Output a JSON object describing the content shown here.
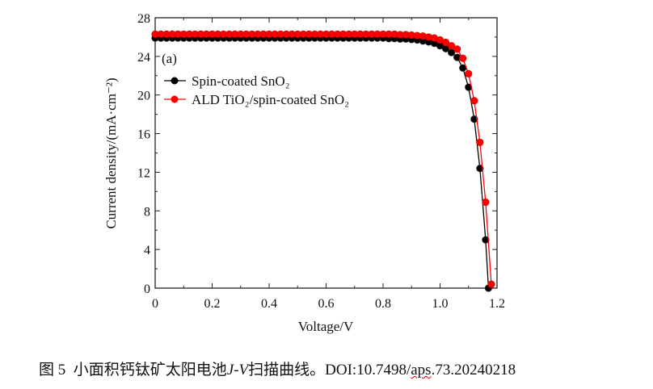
{
  "chart_data": {
    "type": "line",
    "panel_label": "(a)",
    "xlabel": "Voltage/V",
    "ylabel": "Current density/(mA·cm⁻²)",
    "xlim": [
      0,
      1.2
    ],
    "ylim": [
      0,
      28
    ],
    "x_ticks": [
      "0",
      "0.2",
      "0.4",
      "0.6",
      "0.8",
      "1.0",
      "1.2"
    ],
    "y_ticks": [
      "0",
      "4",
      "8",
      "12",
      "16",
      "20",
      "24",
      "28"
    ],
    "grid": false,
    "legend_position": "upper-left",
    "series": [
      {
        "name": "Spin-coated SnO₂",
        "color": "#000000",
        "x": [
          0,
          0.02,
          0.04,
          0.06,
          0.08,
          0.1,
          0.12,
          0.14,
          0.16,
          0.18,
          0.2,
          0.22,
          0.24,
          0.26,
          0.28,
          0.3,
          0.32,
          0.34,
          0.36,
          0.38,
          0.4,
          0.42,
          0.44,
          0.46,
          0.48,
          0.5,
          0.52,
          0.54,
          0.56,
          0.58,
          0.6,
          0.62,
          0.64,
          0.66,
          0.68,
          0.7,
          0.72,
          0.74,
          0.76,
          0.78,
          0.8,
          0.82,
          0.84,
          0.86,
          0.88,
          0.9,
          0.92,
          0.94,
          0.96,
          0.98,
          1.0,
          1.02,
          1.04,
          1.06,
          1.08,
          1.1,
          1.12,
          1.14,
          1.16,
          1.17
        ],
        "y": [
          25.9,
          25.9,
          25.9,
          25.9,
          25.9,
          25.9,
          25.9,
          25.9,
          25.9,
          25.9,
          25.9,
          25.9,
          25.9,
          25.9,
          25.9,
          25.9,
          25.9,
          25.9,
          25.9,
          25.9,
          25.9,
          25.9,
          25.9,
          25.9,
          25.9,
          25.9,
          25.9,
          25.9,
          25.9,
          25.9,
          25.9,
          25.9,
          25.9,
          25.9,
          25.9,
          25.9,
          25.9,
          25.9,
          25.9,
          25.9,
          25.9,
          25.85,
          25.85,
          25.8,
          25.8,
          25.75,
          25.7,
          25.6,
          25.5,
          25.35,
          25.1,
          24.8,
          24.4,
          23.9,
          22.8,
          20.8,
          17.5,
          12.4,
          5.0,
          0.0
        ]
      },
      {
        "name": "ALD TiO₂/spin-coated SnO₂",
        "color": "#ff0000",
        "x": [
          0,
          0.02,
          0.04,
          0.06,
          0.08,
          0.1,
          0.12,
          0.14,
          0.16,
          0.18,
          0.2,
          0.22,
          0.24,
          0.26,
          0.28,
          0.3,
          0.32,
          0.34,
          0.36,
          0.38,
          0.4,
          0.42,
          0.44,
          0.46,
          0.48,
          0.5,
          0.52,
          0.54,
          0.56,
          0.58,
          0.6,
          0.62,
          0.64,
          0.66,
          0.68,
          0.7,
          0.72,
          0.74,
          0.76,
          0.78,
          0.8,
          0.82,
          0.84,
          0.86,
          0.88,
          0.9,
          0.92,
          0.94,
          0.96,
          0.98,
          1.0,
          1.02,
          1.04,
          1.06,
          1.08,
          1.1,
          1.12,
          1.14,
          1.16,
          1.18
        ],
        "y": [
          26.3,
          26.3,
          26.3,
          26.3,
          26.3,
          26.3,
          26.3,
          26.3,
          26.3,
          26.3,
          26.3,
          26.3,
          26.3,
          26.3,
          26.3,
          26.3,
          26.3,
          26.3,
          26.3,
          26.3,
          26.3,
          26.3,
          26.3,
          26.3,
          26.3,
          26.3,
          26.3,
          26.3,
          26.3,
          26.3,
          26.3,
          26.3,
          26.3,
          26.3,
          26.3,
          26.3,
          26.3,
          26.3,
          26.3,
          26.3,
          26.3,
          26.3,
          26.3,
          26.25,
          26.25,
          26.2,
          26.15,
          26.1,
          26.0,
          25.9,
          25.7,
          25.45,
          25.1,
          24.75,
          23.8,
          22.2,
          19.4,
          15.1,
          8.9,
          0.4
        ]
      }
    ]
  },
  "caption": {
    "figure_no": "图 5",
    "text_before": "小面积钙钛矿太阳电池",
    "italic": "J-V",
    "text_after": "扫描曲线。DOI:10.7498/",
    "underlined": "aps",
    "doi_tail": ".73.20240218"
  }
}
